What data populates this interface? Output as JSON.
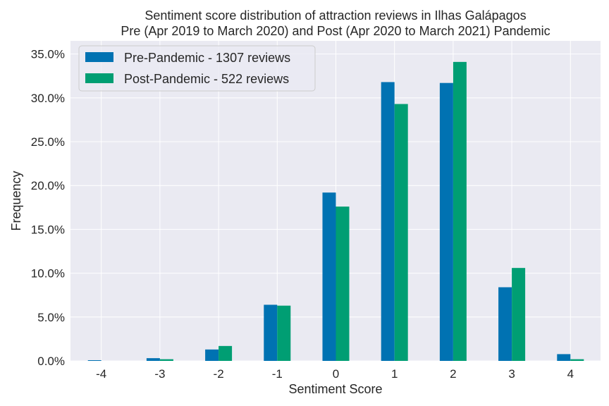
{
  "chart_data": {
    "type": "bar",
    "title": "Sentiment score distribution of attraction reviews in Ilhas Galápagos",
    "subtitle": "Pre (Apr 2019 to March 2020) and Post (Apr 2020 to March 2021) Pandemic",
    "xlabel": "Sentiment Score",
    "ylabel": "Frequency",
    "categories": [
      "-4",
      "-3",
      "-2",
      "-1",
      "0",
      "1",
      "2",
      "3",
      "4"
    ],
    "x": [
      -4,
      -3,
      -2,
      -1,
      0,
      1,
      2,
      3,
      4
    ],
    "ylim": [
      0,
      36.5
    ],
    "yticks": [
      0,
      5,
      10,
      15,
      20,
      25,
      30,
      35
    ],
    "ytick_labels": [
      "0.0%",
      "5.0%",
      "10.0%",
      "15.0%",
      "20.0%",
      "25.0%",
      "30.0%",
      "35.0%"
    ],
    "series": [
      {
        "name": "Pre-Pandemic - 1307 reviews",
        "color": "#0072B2",
        "values": [
          0.08,
          0.31,
          1.3,
          6.4,
          19.2,
          31.8,
          31.7,
          8.4,
          0.77
        ]
      },
      {
        "name": "Post-Pandemic - 522 reviews",
        "color": "#009E73",
        "values": [
          0.0,
          0.19,
          1.7,
          6.3,
          17.6,
          29.3,
          34.1,
          10.6,
          0.19
        ]
      }
    ],
    "grid": true,
    "legend_position": "top-left",
    "background_color": "#EAEAF2"
  }
}
